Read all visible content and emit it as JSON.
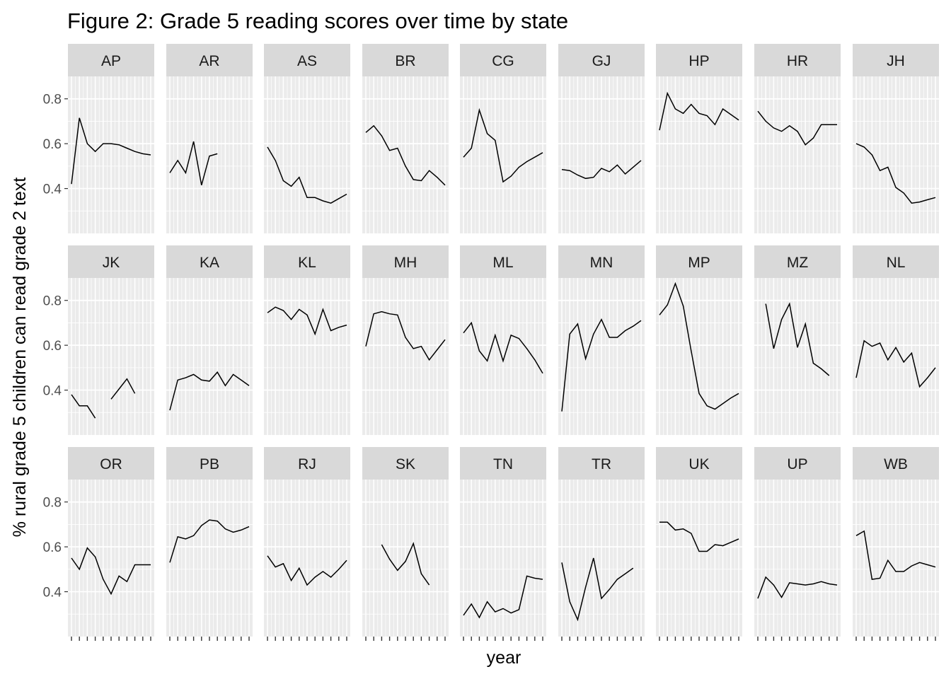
{
  "chart_data": {
    "type": "line",
    "title": "Figure 2: Grade 5 reading scores over time by state",
    "xlabel": "year",
    "ylabel": "% rural grade 5 children can read grade 2 text",
    "ylim": [
      0.2,
      0.9
    ],
    "yticks": [
      0.4,
      0.6,
      0.8
    ],
    "ytick_labels": [
      "0.4",
      "0.6",
      "0.8"
    ],
    "x_points": [
      1,
      2,
      3,
      4,
      5,
      6,
      7,
      8,
      9,
      10,
      11
    ],
    "panels": [
      {
        "state": "AP",
        "values": [
          0.42,
          0.715,
          0.6,
          0.565,
          0.6,
          0.6,
          0.595,
          0.58,
          0.565,
          0.555,
          0.55
        ]
      },
      {
        "state": "AR",
        "values": [
          0.47,
          0.525,
          0.47,
          0.61,
          0.415,
          0.545,
          0.555,
          null,
          null,
          null,
          null
        ]
      },
      {
        "state": "AS",
        "values": [
          0.585,
          0.525,
          0.435,
          0.41,
          0.45,
          0.36,
          0.36,
          0.345,
          0.335,
          0.355,
          0.375
        ]
      },
      {
        "state": "BR",
        "values": [
          0.65,
          0.68,
          0.635,
          0.57,
          0.58,
          0.5,
          0.44,
          0.435,
          0.48,
          0.45,
          0.415
        ]
      },
      {
        "state": "CG",
        "values": [
          0.54,
          0.58,
          0.75,
          0.645,
          0.615,
          0.43,
          0.455,
          0.495,
          0.52,
          0.54,
          0.56
        ]
      },
      {
        "state": "GJ",
        "values": [
          0.485,
          0.48,
          0.46,
          0.445,
          0.45,
          0.49,
          0.475,
          0.505,
          0.465,
          0.495,
          0.525
        ]
      },
      {
        "state": "HP",
        "values": [
          0.66,
          0.825,
          0.755,
          0.735,
          0.775,
          0.735,
          0.725,
          0.685,
          0.755,
          0.73,
          0.705
        ]
      },
      {
        "state": "HR",
        "values": [
          0.745,
          0.7,
          0.67,
          0.655,
          0.68,
          0.655,
          0.595,
          0.625,
          0.685,
          0.685,
          0.685
        ]
      },
      {
        "state": "JH",
        "values": [
          0.6,
          0.585,
          0.55,
          0.48,
          0.495,
          0.405,
          0.38,
          0.335,
          0.34,
          0.35,
          0.36
        ]
      },
      {
        "state": "JK",
        "values": [
          0.38,
          0.33,
          0.33,
          0.275,
          null,
          0.36,
          0.405,
          0.45,
          0.385,
          null,
          null
        ]
      },
      {
        "state": "KA",
        "values": [
          0.31,
          0.445,
          0.455,
          0.47,
          0.445,
          0.44,
          0.48,
          0.42,
          0.47,
          0.445,
          0.42
        ]
      },
      {
        "state": "KL",
        "values": [
          0.745,
          0.77,
          0.755,
          0.715,
          0.76,
          0.735,
          0.65,
          0.76,
          0.665,
          0.68,
          0.69
        ]
      },
      {
        "state": "MH",
        "values": [
          0.595,
          0.74,
          0.75,
          0.74,
          0.735,
          0.635,
          0.585,
          0.595,
          0.535,
          0.58,
          0.625
        ]
      },
      {
        "state": "ML",
        "values": [
          0.655,
          0.7,
          0.575,
          0.53,
          0.645,
          0.53,
          0.645,
          0.63,
          0.585,
          0.535,
          0.475
        ]
      },
      {
        "state": "MN",
        "values": [
          0.305,
          0.65,
          0.695,
          0.54,
          0.65,
          0.715,
          0.635,
          0.635,
          0.665,
          0.685,
          0.71
        ]
      },
      {
        "state": "MP",
        "values": [
          0.735,
          0.78,
          0.875,
          0.775,
          0.575,
          0.385,
          0.33,
          0.315,
          0.34,
          0.365,
          0.385
        ]
      },
      {
        "state": "MZ",
        "values": [
          null,
          0.785,
          0.585,
          0.715,
          0.785,
          0.59,
          0.695,
          0.52,
          0.495,
          0.465,
          null
        ]
      },
      {
        "state": "NL",
        "values": [
          0.455,
          0.62,
          0.595,
          0.61,
          0.535,
          0.59,
          0.525,
          0.565,
          0.415,
          0.455,
          0.5
        ]
      },
      {
        "state": "OR",
        "values": [
          0.55,
          0.5,
          0.595,
          0.555,
          0.455,
          0.39,
          0.47,
          0.445,
          0.52,
          0.52,
          0.52
        ]
      },
      {
        "state": "PB",
        "values": [
          0.53,
          0.645,
          0.635,
          0.65,
          0.695,
          0.72,
          0.715,
          0.68,
          0.665,
          0.675,
          0.69
        ]
      },
      {
        "state": "RJ",
        "values": [
          0.56,
          0.51,
          0.525,
          0.45,
          0.505,
          0.43,
          0.465,
          0.49,
          0.465,
          0.5,
          0.54
        ]
      },
      {
        "state": "SK",
        "values": [
          null,
          null,
          0.61,
          0.545,
          0.495,
          0.535,
          0.615,
          0.48,
          0.43,
          null,
          null
        ]
      },
      {
        "state": "TN",
        "values": [
          0.295,
          0.345,
          0.285,
          0.355,
          0.31,
          0.325,
          0.305,
          0.32,
          0.47,
          0.46,
          0.455
        ]
      },
      {
        "state": "TR",
        "values": [
          0.53,
          0.355,
          0.275,
          0.42,
          0.55,
          0.37,
          0.41,
          0.455,
          0.48,
          0.505,
          null
        ]
      },
      {
        "state": "UK",
        "values": [
          0.71,
          0.71,
          0.675,
          0.68,
          0.66,
          0.58,
          0.58,
          0.61,
          0.605,
          0.62,
          0.635
        ]
      },
      {
        "state": "UP",
        "values": [
          0.37,
          0.465,
          0.43,
          0.375,
          0.44,
          0.435,
          0.43,
          0.435,
          0.445,
          0.435,
          0.43
        ]
      },
      {
        "state": "WB",
        "values": [
          0.65,
          0.67,
          0.455,
          0.46,
          0.54,
          0.49,
          0.49,
          0.515,
          0.53,
          0.52,
          0.51
        ]
      }
    ]
  }
}
